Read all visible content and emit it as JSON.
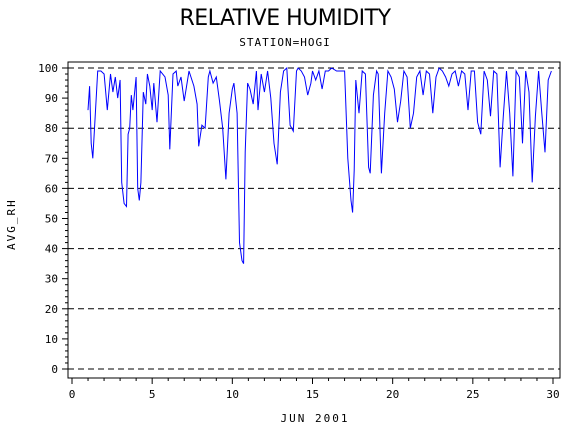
{
  "title": "RELATIVE HUMIDITY",
  "subtitle": "STATION=HOGI",
  "chart_data": {
    "type": "line",
    "title": "RELATIVE HUMIDITY",
    "subtitle": "STATION=HOGI",
    "xlabel": "JUN 2001",
    "ylabel": "AVG_RH",
    "xlim": [
      0,
      30
    ],
    "ylim": [
      0,
      100
    ],
    "xticks": [
      0,
      5,
      10,
      15,
      20,
      25,
      30
    ],
    "yticks": [
      0,
      10,
      20,
      30,
      40,
      50,
      60,
      70,
      80,
      90,
      100
    ],
    "reference_lines": [
      0,
      20,
      40,
      60,
      80,
      100
    ],
    "series_color": "#0000ff",
    "x": [
      1.0,
      1.1,
      1.2,
      1.3,
      1.45,
      1.6,
      1.8,
      2.0,
      2.2,
      2.4,
      2.55,
      2.7,
      2.85,
      3.0,
      3.1,
      3.25,
      3.4,
      3.5,
      3.6,
      3.7,
      3.8,
      4.0,
      4.1,
      4.2,
      4.3,
      4.45,
      4.6,
      4.7,
      4.85,
      5.0,
      5.1,
      5.3,
      5.5,
      5.8,
      6.0,
      6.1,
      6.3,
      6.5,
      6.6,
      6.8,
      7.0,
      7.3,
      7.6,
      7.8,
      7.9,
      8.1,
      8.3,
      8.5,
      8.6,
      8.8,
      9.0,
      9.2,
      9.4,
      9.6,
      9.8,
      10.0,
      10.1,
      10.3,
      10.45,
      10.6,
      10.7,
      10.8,
      10.95,
      11.1,
      11.3,
      11.5,
      11.6,
      11.8,
      12.0,
      12.2,
      12.4,
      12.6,
      12.8,
      13.0,
      13.2,
      13.4,
      13.6,
      13.8,
      14.0,
      14.1,
      14.3,
      14.5,
      14.7,
      14.9,
      15.0,
      15.2,
      15.4,
      15.6,
      15.8,
      16.0,
      16.2,
      16.5,
      16.8,
      17.0,
      17.2,
      17.4,
      17.5,
      17.6,
      17.7,
      17.9,
      18.1,
      18.3,
      18.5,
      18.6,
      18.8,
      19.0,
      19.1,
      19.3,
      19.5,
      19.7,
      19.9,
      20.1,
      20.3,
      20.5,
      20.7,
      20.9,
      21.1,
      21.3,
      21.5,
      21.7,
      21.9,
      22.1,
      22.3,
      22.5,
      22.7,
      22.9,
      23.1,
      23.3,
      23.5,
      23.7,
      23.9,
      24.1,
      24.3,
      24.5,
      24.7,
      24.9,
      25.1,
      25.3,
      25.5,
      25.7,
      25.9,
      26.1,
      26.3,
      26.5,
      26.7,
      26.9,
      27.1,
      27.3,
      27.5,
      27.7,
      27.9,
      28.1,
      28.3,
      28.5,
      28.7,
      28.9,
      29.1,
      29.3,
      29.5,
      29.7,
      29.9
    ],
    "y": [
      86,
      94,
      75,
      70,
      84,
      99,
      99,
      98,
      86,
      98,
      92,
      97,
      90,
      96,
      62,
      55,
      54,
      78,
      80,
      91,
      86,
      97,
      60,
      56,
      62,
      92,
      88,
      98,
      94,
      86,
      95,
      82,
      99,
      97,
      91,
      73,
      98,
      99,
      94,
      97,
      89,
      99,
      94,
      88,
      74,
      81,
      80,
      97,
      99,
      95,
      97,
      89,
      80,
      63,
      85,
      93,
      95,
      85,
      42,
      36,
      35,
      72,
      95,
      93,
      88,
      99,
      86,
      98,
      92,
      99,
      90,
      75,
      68,
      92,
      99,
      100,
      81,
      79,
      99,
      100,
      99,
      97,
      91,
      95,
      99,
      96,
      99,
      93,
      99,
      99,
      100,
      99,
      99,
      99,
      70,
      56,
      52,
      66,
      96,
      85,
      99,
      98,
      67,
      65,
      91,
      99,
      98,
      65,
      85,
      99,
      97,
      93,
      82,
      89,
      99,
      97,
      80,
      85,
      97,
      99,
      91,
      99,
      98,
      85,
      97,
      100,
      99,
      97,
      94,
      98,
      99,
      94,
      99,
      98,
      86,
      99,
      99,
      82,
      78,
      99,
      96,
      84,
      99,
      98,
      67,
      84,
      99,
      85,
      64,
      99,
      97,
      75,
      99,
      92,
      62,
      84,
      99,
      85,
      72,
      96,
      99
    ]
  }
}
